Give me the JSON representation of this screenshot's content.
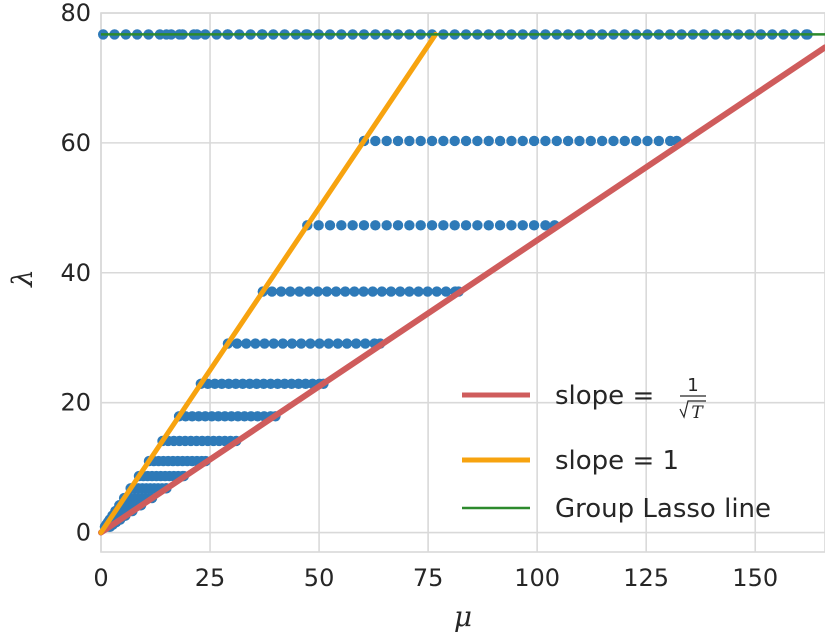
{
  "chart_data": {
    "type": "scatter",
    "xlabel": "μ",
    "ylabel": "λ",
    "xlim": [
      0,
      166
    ],
    "ylim": [
      -3,
      80
    ],
    "xticks": [
      "0",
      "25",
      "50",
      "75",
      "100",
      "125",
      "150"
    ],
    "yticks": [
      "0",
      "20",
      "40",
      "60",
      "80"
    ],
    "grid": true,
    "legend_position": "lower-right",
    "colors": {
      "points": "#2e7ab8",
      "slope_sqrt": "#cf5c5c",
      "slope_one": "#f7a30f",
      "group_lasso": "#2d8a2d",
      "grid": "#d9d9d9",
      "background": "#ffffff"
    },
    "series": [
      {
        "name": "",
        "kind": "points",
        "levels": [
          {
            "lambda": 76.7,
            "mu_min": 0.5,
            "mu_max": 162,
            "step": 2.6,
            "extra_mu": [
              15,
              18,
              22,
              29,
              37,
              47
            ]
          },
          {
            "lambda": 60.3,
            "mu_min": 60.3,
            "mu_max": 132,
            "step": 2.6
          },
          {
            "lambda": 47.3,
            "mu_min": 47.3,
            "mu_max": 104,
            "step": 2.6
          },
          {
            "lambda": 37.1,
            "mu_min": 37.1,
            "mu_max": 82,
            "step": 2.1
          },
          {
            "lambda": 29.1,
            "mu_min": 29.1,
            "mu_max": 64,
            "step": 2.1
          },
          {
            "lambda": 22.9,
            "mu_min": 22.9,
            "mu_max": 51,
            "step": 1.6
          },
          {
            "lambda": 17.9,
            "mu_min": 17.9,
            "mu_max": 40,
            "step": 1.5
          },
          {
            "lambda": 14.1,
            "mu_min": 14.1,
            "mu_max": 31,
            "step": 1.3
          },
          {
            "lambda": 11.0,
            "mu_min": 11.0,
            "mu_max": 24,
            "step": 1.1
          },
          {
            "lambda": 8.7,
            "mu_min": 8.7,
            "mu_max": 19,
            "step": 1.0
          },
          {
            "lambda": 6.8,
            "mu_min": 6.8,
            "mu_max": 15,
            "step": 0.9
          },
          {
            "lambda": 5.3,
            "mu_min": 5.3,
            "mu_max": 11.7,
            "step": 0.8
          },
          {
            "lambda": 4.2,
            "mu_min": 4.2,
            "mu_max": 9.2,
            "step": 0.8
          },
          {
            "lambda": 3.3,
            "mu_min": 3.3,
            "mu_max": 7.2,
            "step": 0.7
          },
          {
            "lambda": 2.6,
            "mu_min": 2.6,
            "mu_max": 5.6,
            "step": 0.7
          },
          {
            "lambda": 2.0,
            "mu_min": 2.0,
            "mu_max": 4.4,
            "step": 0.6
          },
          {
            "lambda": 1.6,
            "mu_min": 1.6,
            "mu_max": 3.5,
            "step": 0.6
          },
          {
            "lambda": 1.2,
            "mu_min": 1.2,
            "mu_max": 2.7,
            "step": 0.5
          },
          {
            "lambda": 0.9,
            "mu_min": 0.9,
            "mu_max": 2.1,
            "step": 0.5
          }
        ]
      },
      {
        "name": "slope = 1/√T",
        "kind": "line",
        "x": [
          0,
          166
        ],
        "y": [
          0,
          74.7
        ],
        "width": 6
      },
      {
        "name": "slope = 1",
        "kind": "line",
        "x": [
          0,
          76.7
        ],
        "y": [
          0,
          76.7
        ],
        "width": 5
      },
      {
        "name": "Group Lasso line",
        "kind": "hline",
        "y": 76.7,
        "width": 2.5
      }
    ],
    "legend": {
      "entries": [
        {
          "label_prefix": "slope = ",
          "frac_num": "1",
          "frac_den": "T",
          "color_key": "slope_sqrt"
        },
        {
          "label": "slope = 1",
          "color_key": "slope_one"
        },
        {
          "label": "Group Lasso line",
          "color_key": "group_lasso"
        }
      ]
    }
  }
}
